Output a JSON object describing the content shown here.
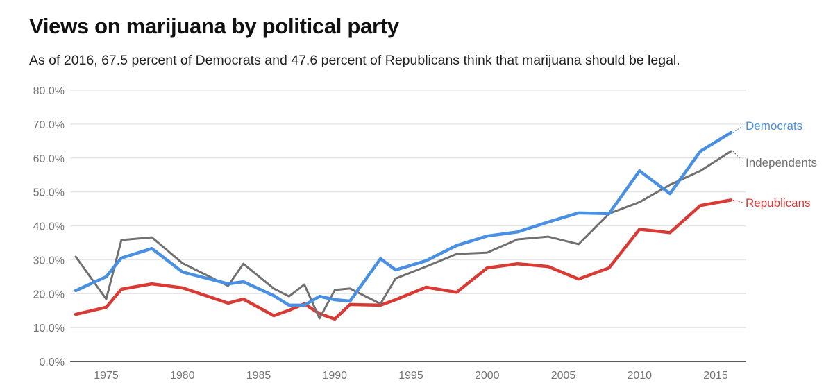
{
  "chart_data": {
    "type": "line",
    "title": "Views on marijuana by political party",
    "subtitle": "As of 2016, 67.5 percent of Democrats and 47.6 percent of Republicans think that marijuana should be legal.",
    "xlabel": "",
    "ylabel": "",
    "x": [
      1973,
      1975,
      1976,
      1978,
      1980,
      1983,
      1984,
      1986,
      1987,
      1988,
      1989,
      1990,
      1991,
      1993,
      1994,
      1996,
      1998,
      2000,
      2002,
      2004,
      2006,
      2008,
      2010,
      2012,
      2014,
      2016
    ],
    "xlim": [
      1972.5,
      2017.5
    ],
    "ylim": [
      0,
      80
    ],
    "x_ticks": [
      "1975",
      "1980",
      "1985",
      "1990",
      "1995",
      "2000",
      "2005",
      "2010",
      "2015"
    ],
    "y_ticks": [
      "0.0%",
      "10.0%",
      "20.0%",
      "30.0%",
      "40.0%",
      "50.0%",
      "60.0%",
      "70.0%",
      "80.0%"
    ],
    "grid": true,
    "legend": "right, labels at line ends",
    "series": [
      {
        "name": "Democrats",
        "color": "#4a90e2",
        "values": [
          20.9,
          25.0,
          30.5,
          33.3,
          26.4,
          22.9,
          23.5,
          19.4,
          16.6,
          16.6,
          19.2,
          18.2,
          17.8,
          30.3,
          27.0,
          29.7,
          34.2,
          37.0,
          38.2,
          41.1,
          43.8,
          43.6,
          56.2,
          49.5,
          62.0,
          67.5
        ]
      },
      {
        "name": "Independents",
        "color": "#707070",
        "values": [
          30.9,
          18.4,
          35.8,
          36.6,
          29.0,
          22.3,
          28.8,
          21.5,
          19.2,
          22.7,
          12.7,
          21.1,
          21.5,
          17.0,
          24.5,
          28.0,
          31.7,
          32.1,
          36.0,
          36.8,
          34.6,
          43.6,
          47.0,
          52.1,
          56.2,
          62.0
        ]
      },
      {
        "name": "Republicans",
        "color": "#d93a34",
        "values": [
          13.9,
          16.0,
          21.3,
          22.9,
          21.7,
          17.2,
          18.4,
          13.5,
          15.1,
          17.0,
          14.1,
          12.5,
          16.8,
          16.6,
          18.2,
          21.9,
          20.4,
          27.6,
          28.8,
          28.0,
          24.3,
          27.6,
          39.0,
          38.0,
          46.0,
          47.6
        ]
      }
    ]
  }
}
